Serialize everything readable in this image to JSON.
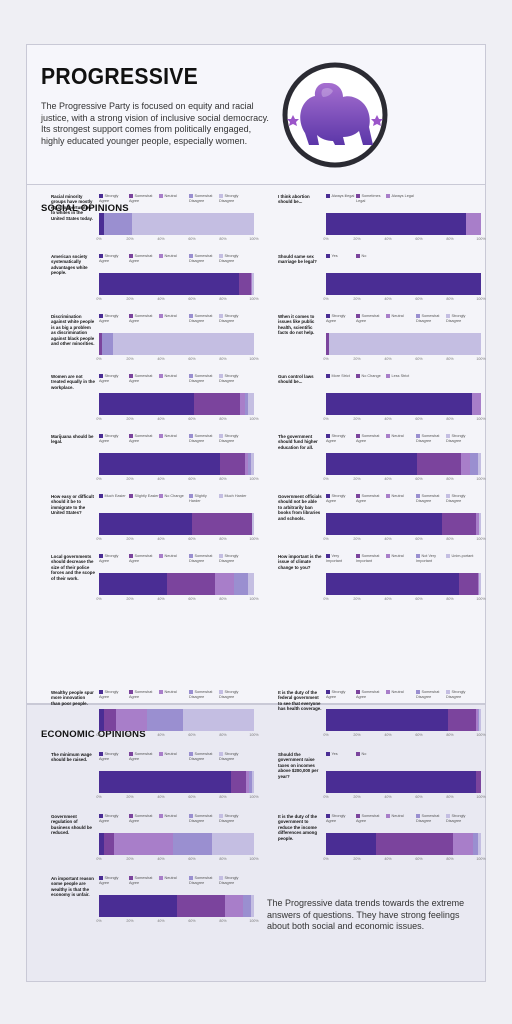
{
  "header": {
    "title": "PROGRESSIVE",
    "description": "The Progressive Party is focused on equity and racial justice, with a strong vision of inclusive social democracy. Its strongest support comes from politically engaged, highly educated younger people, especially women."
  },
  "colors": {
    "c1": "#4a2d94",
    "c2": "#7b449d",
    "c3": "#a87ec9",
    "c4": "#9a8fd0",
    "c5": "#c4bee2",
    "logo_top": "#a66fd0",
    "logo_bottom": "#5b36a8"
  },
  "sections": {
    "social_title": "SOCIAL OPINIONS",
    "economic_title": "ECONOMIC OPINIONS"
  },
  "axis_ticks": [
    "0%",
    "20%",
    "40%",
    "60%",
    "80%",
    "100%"
  ],
  "footnote": "The Progressive data trends towards the extreme answers of questions. They have strong feelings about both social and economic issues.",
  "chart_data": [
    {
      "type": "bar",
      "section": "social",
      "question": "Racial minority groups have mostly equal opportunities to whites in the United States today.",
      "categories": [
        "Strongly Agree",
        "Somewhat Agree",
        "Neutral",
        "Somewhat Disagree",
        "Strongly Disagree"
      ],
      "values": [
        3,
        0,
        0,
        18,
        79
      ],
      "xlim": [
        0,
        100
      ]
    },
    {
      "type": "bar",
      "section": "social",
      "question": "I think abortion should be...",
      "categories": [
        "Always illegal",
        "Sometimes Legal",
        "Always Legal"
      ],
      "values": [
        90,
        0,
        10
      ],
      "xlim": [
        0,
        100
      ]
    },
    {
      "type": "bar",
      "section": "social",
      "question": "American society systematically advantages white people.",
      "categories": [
        "Strongly Agree",
        "Somewhat Agree",
        "Neutral",
        "Somewhat Disagree",
        "Strongly Disagree"
      ],
      "values": [
        90,
        8,
        1,
        0,
        1
      ],
      "xlim": [
        0,
        100
      ]
    },
    {
      "type": "bar",
      "section": "social",
      "question": "Should same sex marriage be legal?",
      "categories": [
        "Yes",
        "No"
      ],
      "values": [
        100,
        0
      ],
      "xlim": [
        0,
        100
      ]
    },
    {
      "type": "bar",
      "section": "social",
      "question": "Discrimination against white people is as big a problem as discrimination against black people and other minorities.",
      "categories": [
        "Strongly Agree",
        "Somewhat Agree",
        "Neutral",
        "Somewhat Disagree",
        "Strongly Disagree"
      ],
      "values": [
        0,
        2,
        0,
        7,
        91
      ],
      "xlim": [
        0,
        100
      ]
    },
    {
      "type": "bar",
      "section": "social",
      "question": "When it comes to issues like public health, scientific facts do not help.",
      "categories": [
        "Strongly Agree",
        "Somewhat Agree",
        "Neutral",
        "Somewhat Disagree",
        "Strongly Disagree"
      ],
      "values": [
        0,
        2,
        0,
        0,
        98
      ],
      "xlim": [
        0,
        100
      ]
    },
    {
      "type": "bar",
      "section": "social",
      "question": "Women are not treated equally in the workplace.",
      "categories": [
        "Strongly Agree",
        "Somewhat Agree",
        "Neutral",
        "Somewhat Disagree",
        "Strongly Disagree"
      ],
      "values": [
        61,
        30,
        3,
        2,
        4
      ],
      "xlim": [
        0,
        100
      ]
    },
    {
      "type": "bar",
      "section": "social",
      "question": "Gun control laws should be...",
      "categories": [
        "More Strict",
        "No Change",
        "Less Strict"
      ],
      "values": [
        94,
        0,
        6
      ],
      "xlim": [
        0,
        100
      ]
    },
    {
      "type": "bar",
      "section": "social",
      "question": "Marijuana should be legal.",
      "categories": [
        "Strongly Agree",
        "Somewhat Agree",
        "Neutral",
        "Somewhat Disagree",
        "Strongly Disagree"
      ],
      "values": [
        78,
        16,
        2,
        2,
        2
      ],
      "xlim": [
        0,
        100
      ]
    },
    {
      "type": "bar",
      "section": "social",
      "question": "The government should fund higher education for all.",
      "categories": [
        "Strongly Agree",
        "Somewhat Agree",
        "Neutral",
        "Somewhat Disagree",
        "Strongly Disagree"
      ],
      "values": [
        59,
        28,
        6,
        5,
        2
      ],
      "xlim": [
        0,
        100
      ]
    },
    {
      "type": "bar",
      "section": "social",
      "question": "How easy or difficult should it be to immigrate to the United States?",
      "categories": [
        "Much Easier",
        "Slightly Easier",
        "No Change",
        "Slightly Harder",
        "Much Harder"
      ],
      "values": [
        60,
        39,
        0,
        0,
        1
      ],
      "xlim": [
        0,
        100
      ]
    },
    {
      "type": "bar",
      "section": "social",
      "question": "Government officials should not be able to arbitrarily ban books from libraries and schools.",
      "categories": [
        "Strongly Agree",
        "Somewhat Agree",
        "Neutral",
        "Somewhat Disagree",
        "Strongly Disagree"
      ],
      "values": [
        75,
        22,
        2,
        0,
        1
      ],
      "xlim": [
        0,
        100
      ]
    },
    {
      "type": "bar",
      "section": "social",
      "question": "Local governments should decrease the size of their police forces and the scope of their work.",
      "categories": [
        "Strongly Agree",
        "Somewhat Agree",
        "Neutral",
        "Somewhat Disagree",
        "Strongly Disagree"
      ],
      "values": [
        44,
        31,
        12,
        9,
        4
      ],
      "xlim": [
        0,
        100
      ]
    },
    {
      "type": "bar",
      "section": "social",
      "question": "How important is the issue of climate change to you?",
      "categories": [
        "Very Important",
        "Somewhat Important",
        "Neutral",
        "Not Very Important",
        "Unim-portant"
      ],
      "values": [
        86,
        12,
        1,
        0,
        1
      ],
      "xlim": [
        0,
        100
      ]
    },
    {
      "type": "bar",
      "section": "economic",
      "question": "Wealthy people spur more innovation than poor people.",
      "categories": [
        "Strongly Agree",
        "Somewhat Agree",
        "Neutral",
        "Somewhat Disagree",
        "Strongly Disagree"
      ],
      "values": [
        3,
        8,
        20,
        23,
        46
      ],
      "xlim": [
        0,
        100
      ]
    },
    {
      "type": "bar",
      "section": "economic",
      "question": "It is the duty of the federal government to see that everyone has health coverage.",
      "categories": [
        "Strongly Agree",
        "Somewhat Agree",
        "Neutral",
        "Somewhat Disagree",
        "Strongly Disagree"
      ],
      "values": [
        79,
        18,
        1,
        1,
        1
      ],
      "xlim": [
        0,
        100
      ]
    },
    {
      "type": "bar",
      "section": "economic",
      "question": "The minimum wage should be raised.",
      "categories": [
        "Strongly Agree",
        "Somewhat Agree",
        "Neutral",
        "Somewhat Disagree",
        "Strongly Disagree"
      ],
      "values": [
        85,
        10,
        2,
        2,
        1
      ],
      "xlim": [
        0,
        100
      ]
    },
    {
      "type": "bar",
      "section": "economic",
      "question": "Should the government raise taxes on incomes above $200,000 per year?",
      "categories": [
        "Yes",
        "No"
      ],
      "values": [
        97,
        3
      ],
      "xlim": [
        0,
        100
      ]
    },
    {
      "type": "bar",
      "section": "economic",
      "question": "Government regulation of business should be reduced.",
      "categories": [
        "Strongly Agree",
        "Somewhat Agree",
        "Neutral",
        "Somewhat Disagree",
        "Strongly Disagree"
      ],
      "values": [
        3,
        7,
        38,
        25,
        27
      ],
      "xlim": [
        0,
        100
      ]
    },
    {
      "type": "bar",
      "section": "economic",
      "question": "It is the duty of the government to reduce the income differences among people.",
      "categories": [
        "Strongly Agree",
        "Somewhat Agree",
        "Neutral",
        "Somewhat Disagree",
        "Strongly Disagree"
      ],
      "values": [
        32,
        50,
        13,
        3,
        2
      ],
      "xlim": [
        0,
        100
      ]
    },
    {
      "type": "bar",
      "section": "economic",
      "question": "An important reason some people are wealthy is that the economy is unfair.",
      "categories": [
        "Strongly Agree",
        "Somewhat Agree",
        "Neutral",
        "Somewhat Disagree",
        "Strongly Disagree"
      ],
      "values": [
        50,
        31,
        12,
        5,
        2
      ],
      "xlim": [
        0,
        100
      ]
    }
  ]
}
